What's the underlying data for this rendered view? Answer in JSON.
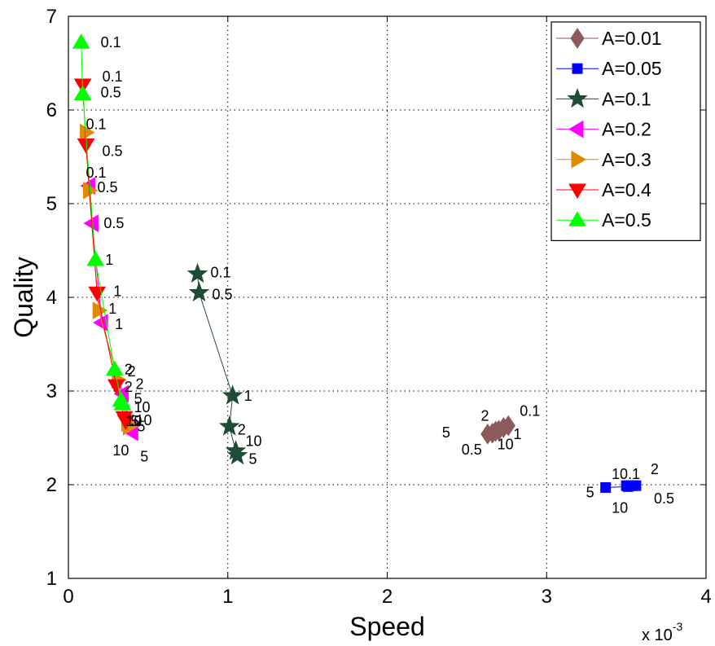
{
  "chart_data": {
    "type": "scatter",
    "xlabel": "Speed",
    "ylabel": "Quality",
    "x_multiplier_label": "x 10",
    "x_multiplier_exponent": "-3",
    "xlim": [
      0,
      4
    ],
    "ylim": [
      1,
      7
    ],
    "x_ticks": [
      "0",
      "1",
      "2",
      "3",
      "4"
    ],
    "y_ticks": [
      "1",
      "2",
      "3",
      "4",
      "5",
      "6",
      "7"
    ],
    "grid": true,
    "legend_position": "top-right",
    "series": [
      {
        "name": "A=0.01",
        "color": "#8B5A5A",
        "marker": "diamond",
        "points": [
          {
            "x": 2.76,
            "y": 2.63,
            "label": "0.1"
          },
          {
            "x": 2.73,
            "y": 2.61,
            "label": "1"
          },
          {
            "x": 2.7,
            "y": 2.58,
            "label": "2"
          },
          {
            "x": 2.68,
            "y": 2.57,
            "label": "10"
          },
          {
            "x": 2.66,
            "y": 2.55,
            "label": "0.5"
          },
          {
            "x": 2.63,
            "y": 2.54,
            "label": "5"
          }
        ]
      },
      {
        "name": "A=0.05",
        "color": "#0000FF",
        "marker": "square",
        "points": [
          {
            "x": 3.56,
            "y": 1.99,
            "label": "2"
          },
          {
            "x": 3.54,
            "y": 1.99,
            "label": "0.5"
          },
          {
            "x": 3.52,
            "y": 1.99,
            "label": "0.1"
          },
          {
            "x": 3.5,
            "y": 1.99,
            "label": "1"
          },
          {
            "x": 3.51,
            "y": 1.98,
            "label": "10"
          },
          {
            "x": 3.37,
            "y": 1.97,
            "label": "5"
          }
        ]
      },
      {
        "name": "A=0.1",
        "color": "#1E4D35",
        "marker": "star",
        "points": [
          {
            "x": 0.81,
            "y": 4.25,
            "label": "0.1"
          },
          {
            "x": 0.82,
            "y": 4.05,
            "label": "0.5"
          },
          {
            "x": 1.03,
            "y": 2.95,
            "label": "1"
          },
          {
            "x": 1.01,
            "y": 2.62,
            "label": "2"
          },
          {
            "x": 1.05,
            "y": 2.36,
            "label": "10"
          },
          {
            "x": 1.06,
            "y": 2.31,
            "label": "5"
          }
        ]
      },
      {
        "name": "A=0.2",
        "color": "#FF00FF",
        "marker": "triangle-left",
        "points": [
          {
            "x": 0.13,
            "y": 5.19,
            "label": "0.1"
          },
          {
            "x": 0.15,
            "y": 4.79,
            "label": "0.5"
          },
          {
            "x": 0.21,
            "y": 3.73,
            "label": "1"
          },
          {
            "x": 0.34,
            "y": 2.97,
            "label": "2"
          },
          {
            "x": 0.39,
            "y": 2.61,
            "label": "10"
          },
          {
            "x": 0.4,
            "y": 2.56,
            "label": "5"
          }
        ]
      },
      {
        "name": "A=0.3",
        "color": "#E08A00",
        "marker": "triangle-right",
        "points": [
          {
            "x": 0.11,
            "y": 5.76,
            "label": "0.1"
          },
          {
            "x": 0.13,
            "y": 5.14,
            "label": "0.5"
          },
          {
            "x": 0.19,
            "y": 3.86,
            "label": "1"
          },
          {
            "x": 0.31,
            "y": 3.12,
            "label": "2"
          },
          {
            "x": 0.37,
            "y": 2.66,
            "label": "10"
          },
          {
            "x": 0.38,
            "y": 2.62,
            "label": "5"
          }
        ]
      },
      {
        "name": "A=0.4",
        "color": "#FF0000",
        "marker": "triangle-down",
        "points": [
          {
            "x": 0.09,
            "y": 6.27,
            "label": "0.1"
          },
          {
            "x": 0.11,
            "y": 5.63,
            "label": "0.5"
          },
          {
            "x": 0.18,
            "y": 4.05,
            "label": "1"
          },
          {
            "x": 0.3,
            "y": 3.06,
            "label": "2"
          },
          {
            "x": 0.35,
            "y": 2.72,
            "label": "10"
          },
          {
            "x": 0.36,
            "y": 2.68,
            "label": "5"
          }
        ]
      },
      {
        "name": "A=0.5",
        "color": "#00FF00",
        "marker": "triangle-up",
        "points": [
          {
            "x": 0.08,
            "y": 6.72,
            "label": "0.1"
          },
          {
            "x": 0.09,
            "y": 6.17,
            "label": "0.5"
          },
          {
            "x": 0.17,
            "y": 4.4,
            "label": "1"
          },
          {
            "x": 0.29,
            "y": 3.23,
            "label": "2"
          },
          {
            "x": 0.33,
            "y": 2.9,
            "label": "5"
          },
          {
            "x": 0.34,
            "y": 2.86,
            "label": "10"
          }
        ]
      }
    ]
  }
}
